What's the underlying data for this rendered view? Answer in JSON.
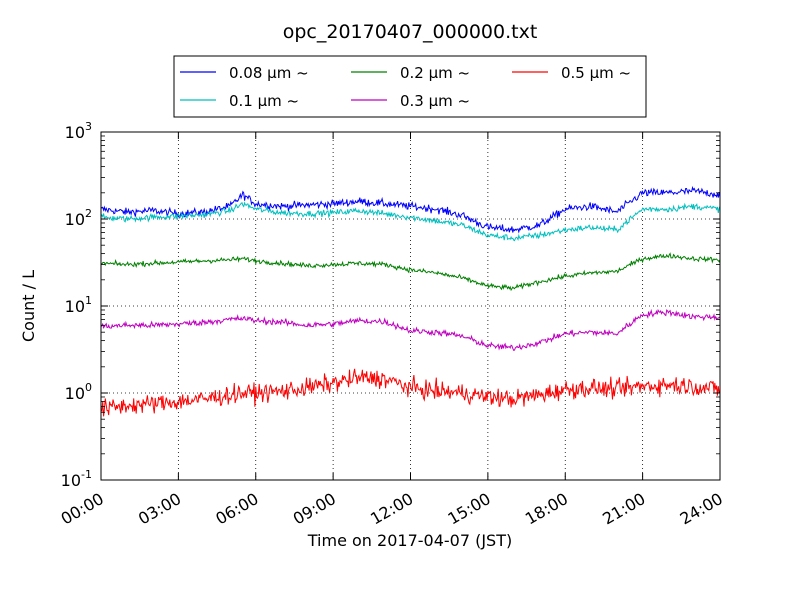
{
  "chart_data": {
    "type": "line",
    "title": "opc_20170407_000000.txt",
    "xlabel": "Time on 2017-04-07 (JST)",
    "ylabel": "Count / L",
    "yscale": "log",
    "ylim": [
      0.1,
      1000
    ],
    "xlim": [
      "00:00",
      "24:00"
    ],
    "grid": true,
    "legend_placement": "top-center",
    "x_ticks": [
      "00:00",
      "03:00",
      "06:00",
      "09:00",
      "12:00",
      "15:00",
      "18:00",
      "21:00",
      "24:00"
    ],
    "y_ticks": [
      {
        "base": "10",
        "exp": "-1"
      },
      {
        "base": "10",
        "exp": "0"
      },
      {
        "base": "10",
        "exp": "1"
      },
      {
        "base": "10",
        "exp": "2"
      },
      {
        "base": "10",
        "exp": "3"
      }
    ],
    "x_hours": [
      0,
      1,
      2,
      3,
      4,
      5,
      5.5,
      6,
      7,
      8,
      9,
      10,
      11,
      12,
      13,
      14,
      15,
      16,
      17,
      18,
      19,
      20,
      21,
      22,
      23,
      24
    ],
    "series": [
      {
        "name": "0.08 μm ~",
        "color": "#0000ff",
        "noise": 0.05,
        "values": [
          130,
          120,
          125,
          115,
          120,
          140,
          190,
          150,
          140,
          145,
          150,
          160,
          150,
          140,
          130,
          110,
          80,
          75,
          85,
          130,
          140,
          120,
          200,
          200,
          210,
          190
        ]
      },
      {
        "name": "0.1 μm ~",
        "color": "#00bfbf",
        "noise": 0.04,
        "values": [
          105,
          100,
          105,
          108,
          112,
          125,
          150,
          130,
          118,
          115,
          118,
          125,
          115,
          105,
          95,
          85,
          65,
          60,
          65,
          75,
          80,
          75,
          130,
          130,
          140,
          130
        ]
      },
      {
        "name": "0.2 μm ~",
        "color": "#008000",
        "noise": 0.03,
        "values": [
          31,
          30,
          31,
          32,
          33,
          34,
          35,
          33,
          31,
          29,
          30,
          31,
          30,
          26,
          24,
          21,
          17,
          16,
          19,
          22,
          24,
          25,
          35,
          38,
          35,
          34
        ]
      },
      {
        "name": "0.3 μm ~",
        "color": "#bf00bf",
        "noise": 0.04,
        "values": [
          5.8,
          6.0,
          6.0,
          6.2,
          6.5,
          7.0,
          7.2,
          6.8,
          6.5,
          6.0,
          6.2,
          6.8,
          6.6,
          5.2,
          5.0,
          4.5,
          3.5,
          3.3,
          3.8,
          4.8,
          5.0,
          4.8,
          8.0,
          8.5,
          7.5,
          7.5
        ]
      },
      {
        "name": "0.5 μm ~",
        "color": "#ff0000",
        "noise": 0.12,
        "values": [
          0.65,
          0.72,
          0.75,
          0.8,
          0.85,
          0.95,
          1.0,
          1.0,
          1.05,
          1.15,
          1.3,
          1.5,
          1.45,
          1.15,
          1.05,
          1.0,
          0.9,
          0.85,
          0.95,
          1.1,
          1.15,
          1.1,
          1.2,
          1.25,
          1.2,
          1.1
        ]
      }
    ]
  }
}
